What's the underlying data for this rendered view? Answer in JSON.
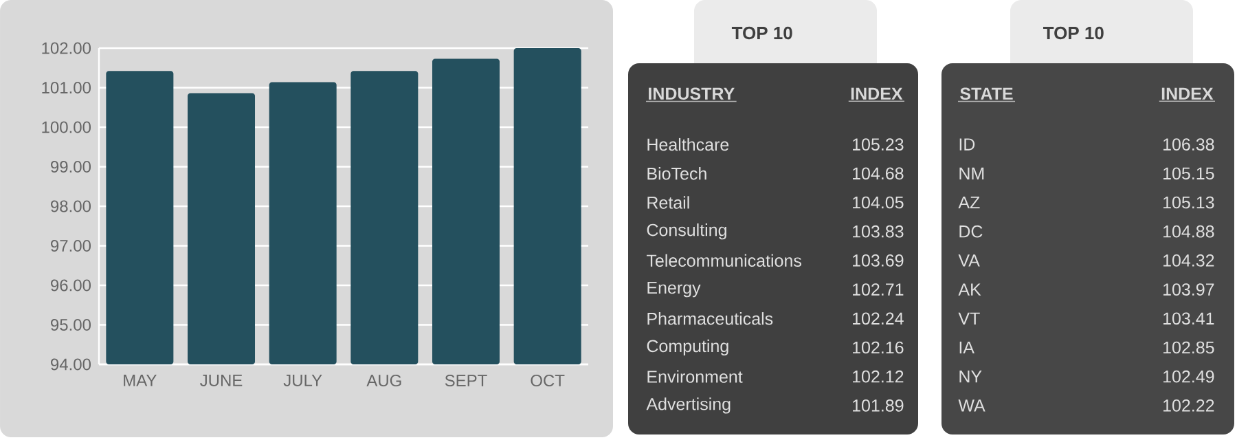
{
  "chart_data": [
    {
      "type": "bar",
      "categories": [
        "MAY",
        "JUNE",
        "JULY",
        "AUG",
        "SEPT",
        "OCT"
      ],
      "values": [
        101.42,
        100.86,
        101.14,
        101.42,
        101.73,
        102.0
      ],
      "color": "#24505e",
      "ylim": [
        94,
        102
      ],
      "yticks": [
        {
          "value": 94,
          "label": "94.00"
        },
        {
          "value": 95,
          "label": "95.00"
        },
        {
          "value": 96,
          "label": "96.00"
        },
        {
          "value": 97,
          "label": "97.00"
        },
        {
          "value": 98,
          "label": "98.00"
        },
        {
          "value": 99,
          "label": "99.00"
        },
        {
          "value": 100,
          "label": "100.00"
        },
        {
          "value": 101,
          "label": "101.00"
        },
        {
          "value": 102,
          "label": "102.00"
        }
      ],
      "grid": "y"
    },
    {
      "type": "other",
      "title": "TOP 10",
      "xlabel": "INDUSTRY",
      "ylabel": "INDEX",
      "categories": [
        "Healthcare",
        "BioTech",
        "Retail",
        "Consulting",
        "Telecommunications",
        "Energy",
        "Pharmaceuticals",
        "Computing",
        "Environment",
        "Advertising"
      ],
      "values": [
        105.23,
        104.68,
        104.05,
        103.83,
        103.69,
        102.71,
        102.24,
        102.16,
        102.12,
        101.89
      ],
      "data_labels": true
    },
    {
      "type": "other",
      "title": "TOP 10",
      "xlabel": "STATE",
      "ylabel": "INDEX",
      "categories": [
        "ID",
        "NM",
        "AZ",
        "DC",
        "VA",
        "AK",
        "VT",
        "IA",
        "NY",
        "WA"
      ],
      "values": [
        106.38,
        105.15,
        105.13,
        104.88,
        104.32,
        103.97,
        103.41,
        102.85,
        102.49,
        102.22
      ],
      "data_labels": true
    }
  ]
}
